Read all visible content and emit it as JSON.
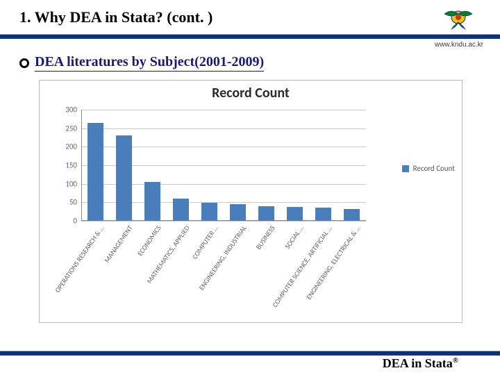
{
  "header": {
    "title": "1. Why DEA in Stata? (cont. )",
    "url": "www.kndu.ac.kr",
    "logo_colors": {
      "wing": "#0b7a2f",
      "center": "#f2c300",
      "outline": "#0b2a66"
    }
  },
  "subtitle": {
    "text": "DEA literatures by Subject(2001-2009)",
    "color": "#1a1a6e"
  },
  "chart": {
    "type": "bar",
    "title": "Record Count",
    "title_fontsize": 20,
    "title_color": "#2b2b2b",
    "font_family": "Calibri",
    "bar_color": "#4a7ebb",
    "grid_color": "#c9c9c9",
    "axis_color": "#8a8a8a",
    "label_color": "#666666",
    "background_color": "#ffffff",
    "border_color": "#b9b9b9",
    "ylim": [
      0,
      300
    ],
    "ytick_step": 50,
    "yticks": [
      0,
      50,
      100,
      150,
      200,
      250,
      300
    ],
    "label_fontsize": 11,
    "xlabel_fontsize": 10,
    "xlabel_rotation": -55,
    "bar_width_ratio": 0.55,
    "categories": [
      "OPERATIONS RESEARCH & …",
      "MANAGEMENT",
      "ECONOMICS",
      "MATHEMATICS, APPLIED",
      "COMPUTER …",
      "ENGINEERING, INDUSTRIAL",
      "BUSINESS",
      "SOCIAL …",
      "COMPUTER SCIENCE, ARTIFICIAL …",
      "ENGINEERING, ELECTRICAL & …"
    ],
    "values": [
      265,
      230,
      105,
      60,
      48,
      45,
      40,
      38,
      35,
      32
    ],
    "legend": {
      "label": "Record Count",
      "swatch": "#4a7ebb"
    }
  },
  "footer": {
    "text": "DEA in Stata",
    "reg": "®"
  },
  "palette": {
    "header_bar": "#0b2a66",
    "thin_rule": "#9aa0a6"
  }
}
